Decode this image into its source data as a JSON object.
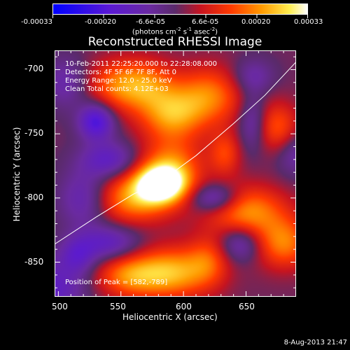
{
  "chart_data": {
    "type": "heatmap",
    "title": "Reconstructed RHESSI Image",
    "xlabel": "Heliocentric X (arcsec)",
    "ylabel": "Heliocentric Y (arcsec)",
    "xlim": [
      497,
      690
    ],
    "ylim": [
      -877,
      -685
    ],
    "x_ticks": [
      500,
      550,
      600,
      650
    ],
    "y_ticks": [
      -700,
      -750,
      -800,
      -850
    ],
    "colorbar": {
      "ticks": [
        "-0.00033",
        "-0.00020",
        "-6.6e-05",
        "6.6e-05",
        "0.00020",
        "0.00033"
      ],
      "tick_values": [
        -0.00033,
        -0.0002,
        -6.6e-05,
        6.6e-05,
        0.0002,
        0.00033
      ],
      "units_main": "(photons cm",
      "units_exp1": "-2",
      "units_mid": " s",
      "units_exp2": "-1",
      "units_end": " asec",
      "units_exp3": "-2",
      "units_close": ")"
    },
    "annotations": {
      "time": "10-Feb-2011 22:25:20.000 to 22:28:08.000",
      "detectors": "Detectors: 4F 5F 6F 7F 8F, Att 0",
      "energy": "Energy Range: 12.0 - 25.0 keV",
      "clean": "Clean    Total counts: 4.12E+03",
      "peak": "Position of Peak = [582,-789]"
    },
    "peak": {
      "x": 582,
      "y": -789
    },
    "limb_curve": [
      [
        497,
        -836
      ],
      [
        530,
        -815
      ],
      [
        560,
        -797
      ],
      [
        582,
        -787
      ],
      [
        610,
        -767
      ],
      [
        640,
        -742
      ],
      [
        665,
        -720
      ],
      [
        690,
        -694
      ]
    ],
    "blobs": [
      {
        "x": 582,
        "y": -789,
        "sx": 14,
        "sy": 10,
        "a": 1.0
      },
      {
        "x": 560,
        "y": -800,
        "sx": 22,
        "sy": 14,
        "a": 0.62
      },
      {
        "x": 590,
        "y": -775,
        "sx": 18,
        "sy": 16,
        "a": 0.55
      },
      {
        "x": 590,
        "y": -735,
        "sx": 18,
        "sy": 14,
        "a": 0.58
      },
      {
        "x": 620,
        "y": -720,
        "sx": 20,
        "sy": 16,
        "a": 0.55
      },
      {
        "x": 570,
        "y": -712,
        "sx": 16,
        "sy": 14,
        "a": 0.5
      },
      {
        "x": 545,
        "y": -712,
        "sx": 16,
        "sy": 14,
        "a": 0.45
      },
      {
        "x": 590,
        "y": -858,
        "sx": 22,
        "sy": 14,
        "a": 0.7
      },
      {
        "x": 555,
        "y": -860,
        "sx": 18,
        "sy": 12,
        "a": 0.5
      },
      {
        "x": 650,
        "y": -810,
        "sx": 22,
        "sy": 14,
        "a": 0.62
      },
      {
        "x": 680,
        "y": -835,
        "sx": 16,
        "sy": 14,
        "a": 0.55
      },
      {
        "x": 675,
        "y": -745,
        "sx": 12,
        "sy": 14,
        "a": 0.45
      },
      {
        "x": 633,
        "y": -765,
        "sx": 9,
        "sy": 12,
        "a": 0.38
      },
      {
        "x": 620,
        "y": -848,
        "sx": 12,
        "sy": 14,
        "a": 0.35
      },
      {
        "x": 530,
        "y": -740,
        "sx": 10,
        "sy": 10,
        "a": -0.65
      },
      {
        "x": 540,
        "y": -770,
        "sx": 16,
        "sy": 10,
        "a": -0.45
      },
      {
        "x": 520,
        "y": -800,
        "sx": 14,
        "sy": 16,
        "a": -0.4
      },
      {
        "x": 540,
        "y": -835,
        "sx": 18,
        "sy": 10,
        "a": -0.45
      },
      {
        "x": 625,
        "y": -800,
        "sx": 14,
        "sy": 8,
        "a": -0.5
      },
      {
        "x": 505,
        "y": -710,
        "sx": 12,
        "sy": 14,
        "a": -0.3
      },
      {
        "x": 645,
        "y": -835,
        "sx": 12,
        "sy": 10,
        "a": -0.4
      },
      {
        "x": 655,
        "y": -740,
        "sx": 8,
        "sy": 16,
        "a": -0.35
      },
      {
        "x": 495,
        "y": -870,
        "sx": 18,
        "sy": 16,
        "a": -0.45
      },
      {
        "x": 655,
        "y": -705,
        "sx": 12,
        "sy": 10,
        "a": -0.3
      },
      {
        "x": 690,
        "y": -765,
        "sx": 12,
        "sy": 12,
        "a": -0.3
      },
      {
        "x": 515,
        "y": -845,
        "sx": 10,
        "sy": 10,
        "a": -0.35
      }
    ]
  },
  "footer": {
    "date": "8-Aug-2013 21:47"
  }
}
